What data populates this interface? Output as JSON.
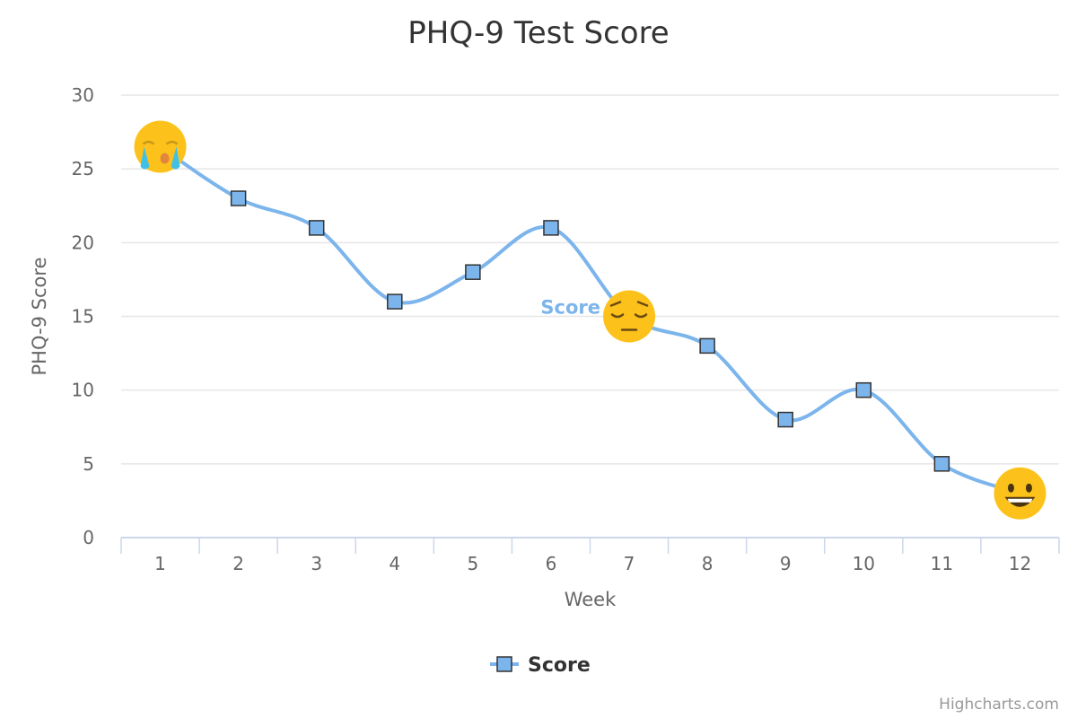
{
  "chart_data": {
    "type": "line",
    "title": "PHQ-9 Test Score",
    "xlabel": "Week",
    "ylabel": "PHQ-9 Score",
    "categories": [
      "1",
      "2",
      "3",
      "4",
      "5",
      "6",
      "7",
      "8",
      "9",
      "10",
      "11",
      "12"
    ],
    "series": [
      {
        "name": "Score",
        "values": [
          26.5,
          23,
          21,
          16,
          18,
          21,
          15,
          13,
          8,
          10,
          5,
          3
        ],
        "color": "#7cb5ec",
        "marker": "square",
        "markers": [
          {
            "index": 0,
            "icon": "crying-face-icon"
          },
          {
            "index": 6,
            "icon": "pensive-face-icon"
          },
          {
            "index": 11,
            "icon": "grinning-face-icon"
          }
        ]
      }
    ],
    "ylim": [
      0,
      30
    ],
    "yticks": [
      0,
      5,
      10,
      15,
      20,
      25,
      30
    ],
    "grid": true,
    "legend_position": "bottom-center",
    "series_label": "Score"
  },
  "credits": "Highcharts.com",
  "colors": {
    "series": "#7cb5ec",
    "marker_stroke": "#333333",
    "grid": "#e6e6e6",
    "axis": "#ccd6eb",
    "emoji_face": "#fcc21b"
  }
}
